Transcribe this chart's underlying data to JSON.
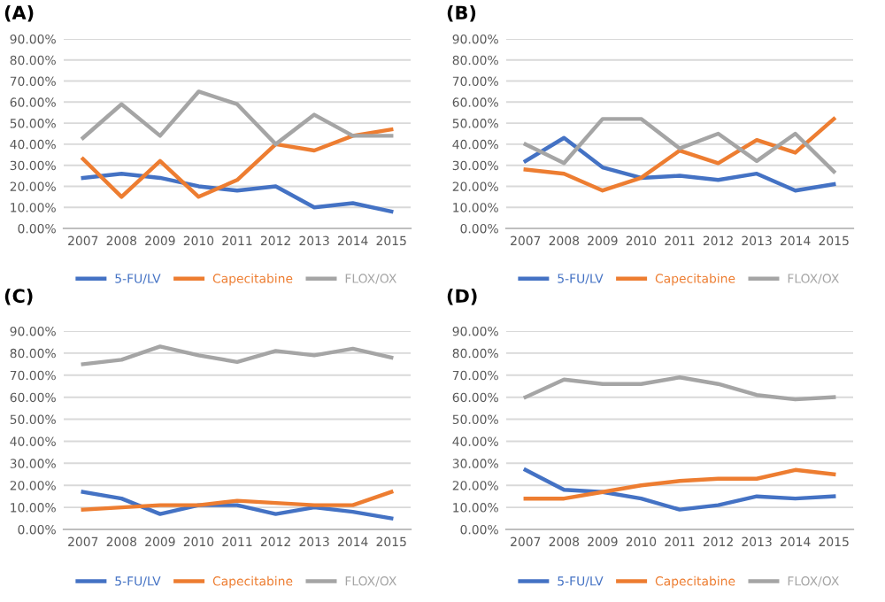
{
  "chart_data": [
    {
      "type": "line",
      "title": "(A)",
      "categories": [
        "2007",
        "2008",
        "2009",
        "2010",
        "2011",
        "2012",
        "2013",
        "2014",
        "2015"
      ],
      "ylim": [
        0,
        90
      ],
      "yticks": [
        {
          "value": 0,
          "label": "0.00%"
        },
        {
          "value": 10,
          "label": "10.00%"
        },
        {
          "value": 20,
          "label": "20.00%"
        },
        {
          "value": 30,
          "label": "30.00%"
        },
        {
          "value": 40,
          "label": "40.00%"
        },
        {
          "value": 50,
          "label": "50.00%"
        },
        {
          "value": 60,
          "label": "60.00%"
        },
        {
          "value": 70,
          "label": "70.00%"
        },
        {
          "value": 80,
          "label": "80.00%"
        },
        {
          "value": 90,
          "label": "90.00%"
        }
      ],
      "grid": "y",
      "legend": "bottom",
      "marker": "none",
      "series": [
        {
          "name": "5-FU/LV",
          "color": "#4472c4",
          "values": [
            24,
            26,
            24,
            20,
            18,
            20,
            10,
            12,
            8
          ]
        },
        {
          "name": "Capecitabine",
          "color": "#ed7d31",
          "values": [
            33,
            15,
            32,
            15,
            23,
            40,
            37,
            44,
            47
          ]
        },
        {
          "name": "FLOX/OX",
          "color": "#a5a5a5",
          "values": [
            43,
            59,
            44,
            65,
            59,
            40,
            54,
            44,
            44
          ]
        }
      ]
    },
    {
      "type": "line",
      "title": "(B)",
      "categories": [
        "2007",
        "2008",
        "2009",
        "2010",
        "2011",
        "2012",
        "2013",
        "2014",
        "2015"
      ],
      "ylim": [
        0,
        90
      ],
      "yticks": [
        {
          "value": 0,
          "label": "0.00%"
        },
        {
          "value": 10,
          "label": "10.00%"
        },
        {
          "value": 20,
          "label": "20.00%"
        },
        {
          "value": 30,
          "label": "30.00%"
        },
        {
          "value": 40,
          "label": "40.00%"
        },
        {
          "value": 50,
          "label": "50.00%"
        },
        {
          "value": 60,
          "label": "60.00%"
        },
        {
          "value": 70,
          "label": "70.00%"
        },
        {
          "value": 80,
          "label": "80.00%"
        },
        {
          "value": 90,
          "label": "90.00%"
        }
      ],
      "grid": "y",
      "legend": "bottom",
      "marker": "none",
      "series": [
        {
          "name": "5-FU/LV",
          "color": "#4472c4",
          "values": [
            32,
            43,
            29,
            24,
            25,
            23,
            26,
            18,
            21
          ]
        },
        {
          "name": "Capecitabine",
          "color": "#ed7d31",
          "values": [
            28,
            26,
            18,
            24,
            37,
            31,
            42,
            36,
            52
          ]
        },
        {
          "name": "FLOX/OX",
          "color": "#a5a5a5",
          "values": [
            40,
            31,
            52,
            52,
            38,
            45,
            32,
            45,
            27
          ]
        }
      ]
    },
    {
      "type": "line",
      "title": "(C)",
      "categories": [
        "2007",
        "2008",
        "2009",
        "2010",
        "2011",
        "2012",
        "2013",
        "2014",
        "2015"
      ],
      "ylim": [
        0,
        90
      ],
      "yticks": [
        {
          "value": 0,
          "label": "0.00%"
        },
        {
          "value": 10,
          "label": "10.00%"
        },
        {
          "value": 20,
          "label": "20.00%"
        },
        {
          "value": 30,
          "label": "30.00%"
        },
        {
          "value": 40,
          "label": "40.00%"
        },
        {
          "value": 50,
          "label": "50.00%"
        },
        {
          "value": 60,
          "label": "60.00%"
        },
        {
          "value": 70,
          "label": "70.00%"
        },
        {
          "value": 80,
          "label": "80.00%"
        },
        {
          "value": 90,
          "label": "90.00%"
        }
      ],
      "grid": "y",
      "legend": "bottom",
      "marker": "none",
      "series": [
        {
          "name": "5-FU/LV",
          "color": "#4472c4",
          "values": [
            17,
            14,
            7,
            11,
            11,
            7,
            10,
            8,
            5
          ]
        },
        {
          "name": "Capecitabine",
          "color": "#ed7d31",
          "values": [
            9,
            10,
            11,
            11,
            13,
            12,
            11,
            11,
            17
          ]
        },
        {
          "name": "FLOX/OX",
          "color": "#a5a5a5",
          "values": [
            75,
            77,
            83,
            79,
            76,
            81,
            79,
            82,
            78
          ]
        }
      ]
    },
    {
      "type": "line",
      "title": "(D)",
      "categories": [
        "2007",
        "2008",
        "2009",
        "2010",
        "2011",
        "2012",
        "2013",
        "2014",
        "2015"
      ],
      "ylim": [
        0,
        90
      ],
      "yticks": [
        {
          "value": 0,
          "label": "0.00%"
        },
        {
          "value": 10,
          "label": "10.00%"
        },
        {
          "value": 20,
          "label": "20.00%"
        },
        {
          "value": 30,
          "label": "30.00%"
        },
        {
          "value": 40,
          "label": "40.00%"
        },
        {
          "value": 50,
          "label": "50.00%"
        },
        {
          "value": 60,
          "label": "60.00%"
        },
        {
          "value": 70,
          "label": "70.00%"
        },
        {
          "value": 80,
          "label": "80.00%"
        },
        {
          "value": 90,
          "label": "90.00%"
        }
      ],
      "grid": "y",
      "legend": "bottom",
      "marker": "none",
      "series": [
        {
          "name": "5-FU/LV",
          "color": "#4472c4",
          "values": [
            27,
            18,
            17,
            14,
            9,
            11,
            15,
            14,
            15
          ]
        },
        {
          "name": "Capecitabine",
          "color": "#ed7d31",
          "values": [
            14,
            14,
            17,
            20,
            22,
            23,
            23,
            27,
            25
          ]
        },
        {
          "name": "FLOX/OX",
          "color": "#a5a5a5",
          "values": [
            60,
            68,
            66,
            66,
            69,
            66,
            61,
            59,
            60
          ]
        }
      ]
    }
  ]
}
